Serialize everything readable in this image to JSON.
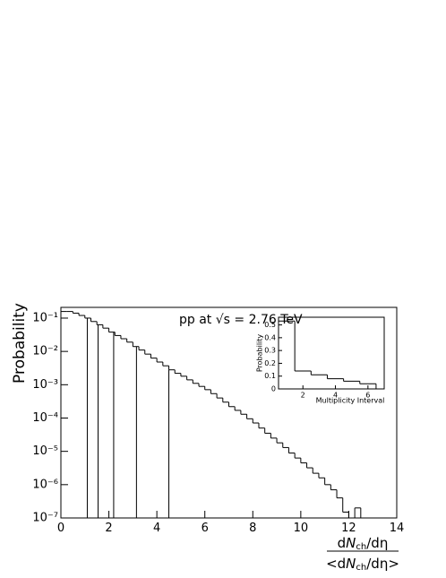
{
  "chart_data": [
    {
      "type": "histogram",
      "log_y": true,
      "color": "#000000",
      "ylabel": "Probability",
      "xlabel": {
        "numerator": [
          "d",
          "N",
          "ch",
          "/dη"
        ],
        "denominator": [
          "<d",
          "N",
          "ch",
          "/dη>"
        ]
      },
      "annotation": {
        "text": "pp at √s = 2.76 TeV",
        "color": "#8b1a1a"
      },
      "bins": [
        0,
        0.25,
        0.5,
        0.75,
        1,
        1.25,
        1.5,
        1.75,
        2,
        2.25,
        2.5,
        2.75,
        3,
        3.25,
        3.5,
        3.75,
        4,
        4.25,
        4.5,
        4.75,
        5,
        5.25,
        5.5,
        5.75,
        6,
        6.25,
        6.5,
        6.75,
        7,
        7.25,
        7.5,
        7.75,
        8,
        8.25,
        8.5,
        8.75,
        9,
        9.25,
        9.5,
        9.75,
        10,
        10.25,
        10.5,
        10.75,
        11,
        11.25,
        11.5,
        11.75,
        12,
        12.25,
        12.5
      ],
      "values": [
        0.158,
        0.158,
        0.141,
        0.12,
        0.1,
        0.079,
        0.063,
        0.05,
        0.038,
        0.03,
        0.024,
        0.019,
        0.014,
        0.011,
        0.0083,
        0.0063,
        0.0048,
        0.0037,
        0.0028,
        0.0022,
        0.0018,
        0.0014,
        0.0011,
        0.00089,
        0.00071,
        0.00054,
        0.0004,
        0.0003,
        0.00022,
        0.00017,
        0.00013,
        9.5e-05,
        7.1e-05,
        5e-05,
        3.5e-05,
        2.5e-05,
        1.8e-05,
        1.3e-05,
        8.9e-06,
        6.3e-06,
        4.5e-06,
        3.2e-06,
        2.2e-06,
        1.6e-06,
        1e-06,
        7e-07,
        4e-07,
        1.5e-07,
        1e-07,
        2e-07
      ],
      "interval_edges": [
        1.1,
        1.55,
        2.2,
        3.15,
        4.5
      ],
      "xlim": [
        0,
        14
      ],
      "xticks": [
        0,
        2,
        4,
        6,
        8,
        10,
        12,
        14
      ],
      "ylim": [
        1e-07,
        0.21
      ],
      "yticks": [
        {
          "value": 1e-07,
          "label": "10⁻⁷"
        },
        {
          "value": 1e-06,
          "label": "10⁻⁶"
        },
        {
          "value": 1e-05,
          "label": "10⁻⁵"
        },
        {
          "value": 0.0001,
          "label": "10⁻⁴"
        },
        {
          "value": 0.001,
          "label": "10⁻³"
        },
        {
          "value": 0.01,
          "label": "10⁻²"
        },
        {
          "value": 0.1,
          "label": "10⁻¹"
        }
      ]
    },
    {
      "type": "histogram",
      "log_y": false,
      "color": "#000000",
      "ylabel": "Probability",
      "xlabel": "Multiplicity Interval",
      "bins": [
        0.5,
        1.5,
        2.5,
        3.5,
        4.5,
        5.5,
        6.5
      ],
      "values": [
        0.53,
        0.14,
        0.11,
        0.08,
        0.06,
        0.04
      ],
      "xlim": [
        0.5,
        7
      ],
      "xticks": [
        2,
        4,
        6
      ],
      "ylim": [
        0,
        0.56
      ],
      "yticks": [
        0,
        0.1,
        0.2,
        0.3,
        0.4,
        0.5
      ]
    }
  ]
}
